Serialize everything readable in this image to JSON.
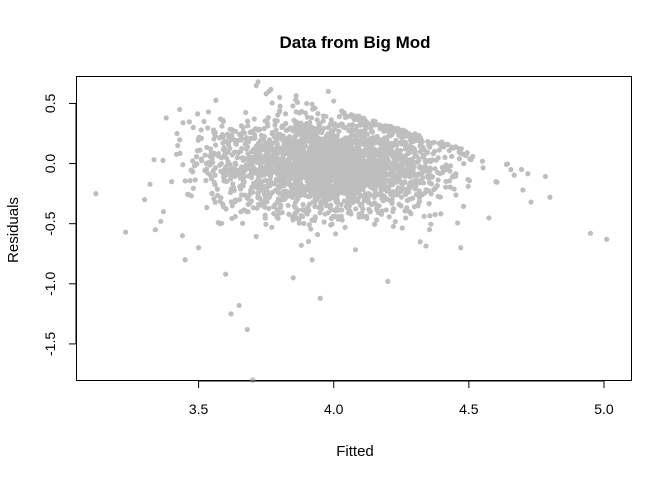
{
  "chart_data": {
    "type": "scatter",
    "title": "Data from Big Mod",
    "xlabel": "Fitted",
    "ylabel": "Residuals",
    "xlim": [
      3.05,
      5.1
    ],
    "ylim": [
      -1.8,
      0.72
    ],
    "xticks": [
      3.5,
      4.0,
      4.5,
      5.0
    ],
    "xtick_labels": [
      "3.5",
      "4.0",
      "4.5",
      "5.0"
    ],
    "yticks": [
      -1.5,
      -1.0,
      -0.5,
      0.0,
      0.5
    ],
    "ytick_labels": [
      "-1.5",
      "-1.0",
      "-0.5",
      "0.0",
      "0.5"
    ],
    "point_color": "#bebebe",
    "grid": false,
    "series": [
      {
        "x": [
          3.12,
          3.23,
          3.3,
          3.34,
          3.36,
          3.38,
          3.43,
          3.45,
          3.48,
          3.6,
          3.62,
          3.65,
          3.68,
          3.7,
          3.72,
          3.76,
          3.8,
          3.85,
          3.88,
          3.92,
          3.95,
          3.98,
          4.2,
          4.28,
          4.32,
          4.47,
          4.6,
          4.7,
          4.73,
          4.8,
          4.95,
          5.01,
          3.37,
          3.4,
          3.42,
          3.44,
          3.5,
          3.52,
          3.55,
          3.58,
          3.75,
          3.9,
          4.0,
          4.1,
          4.15,
          4.3,
          4.4,
          4.55
        ],
        "y": [
          -0.25,
          -0.57,
          -0.3,
          -0.55,
          -0.48,
          0.38,
          0.45,
          -0.8,
          0.3,
          -0.92,
          -1.25,
          -1.18,
          -1.38,
          -1.8,
          0.68,
          0.6,
          0.55,
          -0.95,
          -0.68,
          -0.8,
          -1.12,
          0.6,
          -0.98,
          -0.4,
          -0.65,
          -0.7,
          -0.15,
          -0.22,
          -0.32,
          -0.28,
          -0.58,
          -0.63,
          -0.4,
          -0.15,
          0.25,
          -0.6,
          -0.7,
          0.35,
          -0.25,
          -0.5,
          0.58,
          0.5,
          0.52,
          0.38,
          0.33,
          0.22,
          0.18,
          0.02
        ]
      }
    ]
  }
}
